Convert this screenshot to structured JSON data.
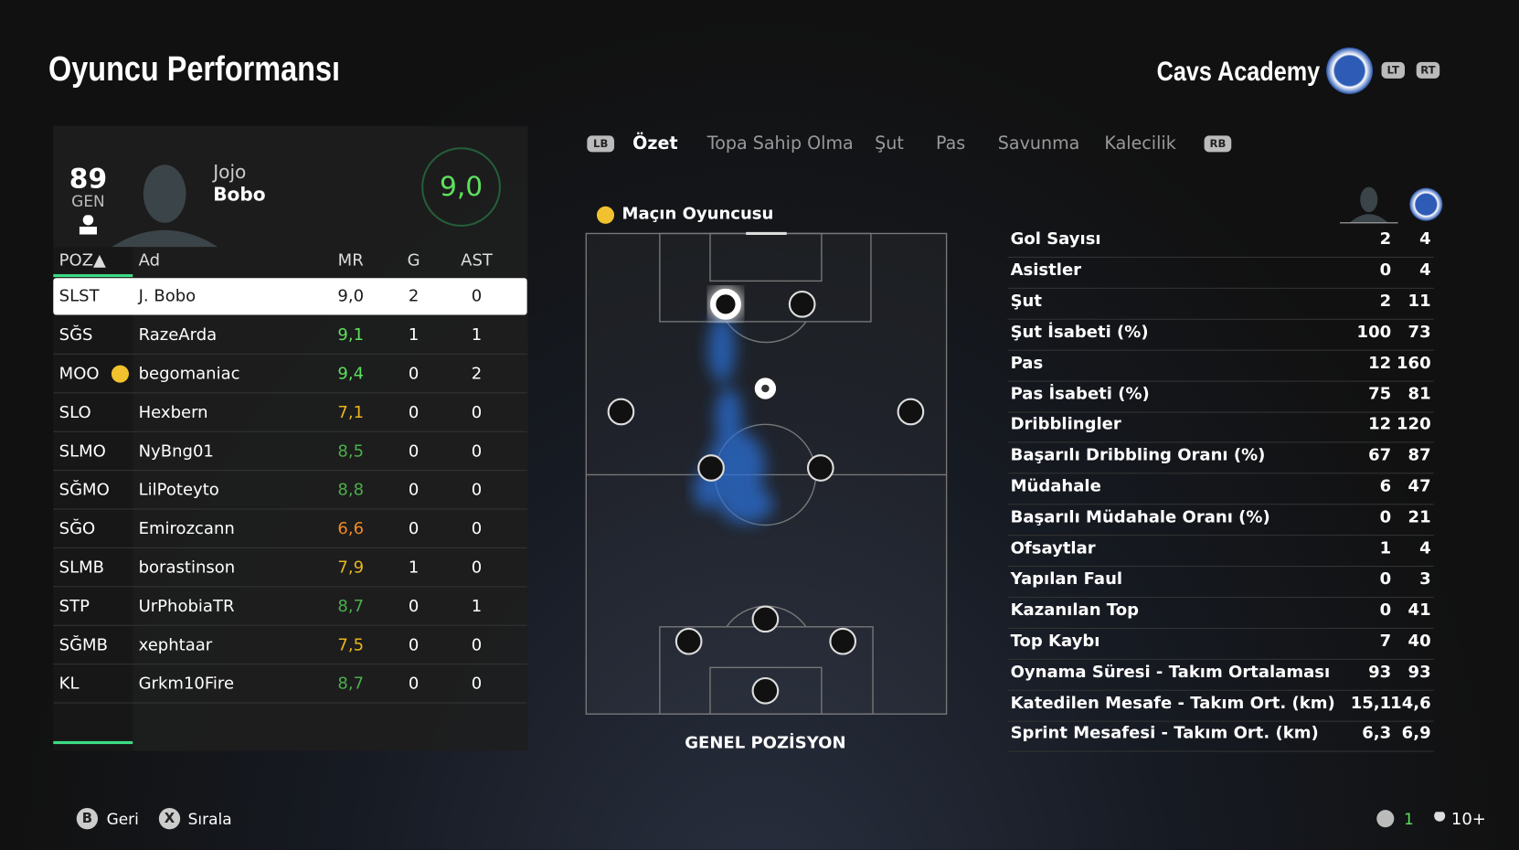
{
  "header": {
    "title": "Oyuncu Performansı",
    "team": "Cavs Academy",
    "left_trigger": "LT",
    "right_trigger": "RT"
  },
  "player_card": {
    "overall": "89",
    "overall_label": "GEN",
    "first_name": "Jojo",
    "last_name": "Bobo",
    "match_rating": "9,0"
  },
  "table": {
    "columns": [
      "POZ▲",
      "Ad",
      "MR",
      "G",
      "AST"
    ],
    "selected_row": 0,
    "rows": [
      {
        "pos": "SLST",
        "name": "J. Bobo",
        "mr": "9,0",
        "g": "2",
        "ast": "0",
        "mr_color": "#1a1a1a"
      },
      {
        "pos": "SĞS",
        "name": "RazeArda",
        "mr": "9,1",
        "g": "1",
        "ast": "1",
        "mr_color": "#5ee05e"
      },
      {
        "pos": "MOO",
        "name": "begomaniac",
        "mr": "9,4",
        "g": "0",
        "ast": "2",
        "mr_color": "#5ee05e",
        "motm": true
      },
      {
        "pos": "SLO",
        "name": "Hexbern",
        "mr": "7,1",
        "g": "0",
        "ast": "0",
        "mr_color": "#e8b61e"
      },
      {
        "pos": "SLMO",
        "name": "NyBng01",
        "mr": "8,5",
        "g": "0",
        "ast": "0",
        "mr_color": "#4cae4c"
      },
      {
        "pos": "SĞMO",
        "name": "LilPoteyto",
        "mr": "8,8",
        "g": "0",
        "ast": "0",
        "mr_color": "#4cae4c"
      },
      {
        "pos": "SĞO",
        "name": "Emirozcann",
        "mr": "6,6",
        "g": "0",
        "ast": "0",
        "mr_color": "#f08a24"
      },
      {
        "pos": "SLMB",
        "name": "borastinson",
        "mr": "7,9",
        "g": "1",
        "ast": "0",
        "mr_color": "#e8b61e"
      },
      {
        "pos": "STP",
        "name": "UrPhobiaTR",
        "mr": "8,7",
        "g": "0",
        "ast": "1",
        "mr_color": "#4cae4c"
      },
      {
        "pos": "SĞMB",
        "name": "xephtaar",
        "mr": "7,5",
        "g": "0",
        "ast": "0",
        "mr_color": "#e8b61e"
      },
      {
        "pos": "KL",
        "name": "Grkm10Fire",
        "mr": "8,7",
        "g": "0",
        "ast": "0",
        "mr_color": "#4cae4c"
      }
    ]
  },
  "tabs": {
    "prev_button": "LB",
    "next_button": "RB",
    "items": [
      "Özet",
      "Topa Sahip Olma",
      "Şut",
      "Pas",
      "Savunma",
      "Kalecilik"
    ],
    "active": 0
  },
  "pitch": {
    "badge": "Maçın Oyuncusu",
    "caption": "GENEL POZİSYON"
  },
  "stats": [
    [
      "Gol Sayısı",
      "2",
      "4"
    ],
    [
      "Asistler",
      "0",
      "4"
    ],
    [
      "Şut",
      "2",
      "11"
    ],
    [
      "Şut İsabeti (%)",
      "100",
      "73"
    ],
    [
      "Pas",
      "12",
      "160"
    ],
    [
      "Pas İsabeti (%)",
      "75",
      "81"
    ],
    [
      "Dribblingler",
      "12",
      "120"
    ],
    [
      "Başarılı Dribbling Oranı (%)",
      "67",
      "87"
    ],
    [
      "Müdahale",
      "6",
      "47"
    ],
    [
      "Başarılı Müdahale Oranı (%)",
      "0",
      "21"
    ],
    [
      "Ofsaytlar",
      "1",
      "4"
    ],
    [
      "Yapılan Faul",
      "0",
      "3"
    ],
    [
      "Kazanılan Top",
      "0",
      "41"
    ],
    [
      "Top Kaybı",
      "7",
      "40"
    ],
    [
      "Oynama Süresi - Takım Ortalaması",
      "93",
      "93"
    ],
    [
      "Katedilen Mesafe - Takım Ort. (km)",
      "15,1",
      "14,6"
    ],
    [
      "Sprint Mesafesi - Takım Ort. (km)",
      "6,3",
      "6,9"
    ]
  ],
  "footer": {
    "back_button": "B",
    "back": "Geri",
    "sort_button": "X",
    "sort": "Sırala",
    "count": "1",
    "players": "10+"
  }
}
